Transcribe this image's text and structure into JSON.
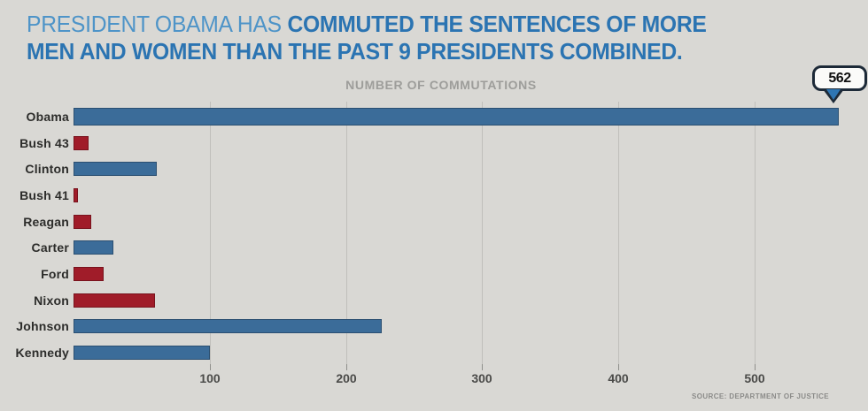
{
  "title": {
    "lead": "PRESIDENT OBAMA HAS",
    "bold_line1": "COMMUTED THE SENTENCES OF MORE",
    "bold_line2": "MEN AND WOMEN THAN THE PAST 9 PRESIDENTS COMBINED."
  },
  "subtitle": "NUMBER OF COMMUTATIONS",
  "callout": {
    "value": "562"
  },
  "source": "SOURCE: DEPARTMENT OF JUSTICE",
  "colors": {
    "background": "#d9d8d4",
    "democrat_blue_bar": "#3b6c99",
    "republican_red_bar": "#a01c29",
    "title_light_blue": "#4e94c8",
    "title_bold_blue": "#2b74b2",
    "gridline_gray": "#c0bfbb",
    "callout_border_navy": "#1d2a38"
  },
  "chart_data": {
    "type": "bar",
    "orientation": "horizontal",
    "title": "NUMBER OF COMMUTATIONS",
    "categories": [
      "Obama",
      "Bush 43",
      "Clinton",
      "Bush 41",
      "Reagan",
      "Carter",
      "Ford",
      "Nixon",
      "Johnson",
      "Kennedy"
    ],
    "values": [
      562,
      11,
      61,
      3,
      13,
      29,
      22,
      60,
      226,
      100
    ],
    "bar_colors": [
      "blue",
      "red",
      "blue",
      "red",
      "red",
      "blue",
      "red",
      "red",
      "blue",
      "blue"
    ],
    "xticks": [
      100,
      200,
      300,
      400,
      500
    ],
    "xlim": [
      0,
      585
    ],
    "grid": "vertical-lines-on",
    "annotation": {
      "label": "562",
      "target": "Obama",
      "style": "speech-bubble-pointing-down"
    },
    "source": "SOURCE: DEPARTMENT OF JUSTICE"
  }
}
